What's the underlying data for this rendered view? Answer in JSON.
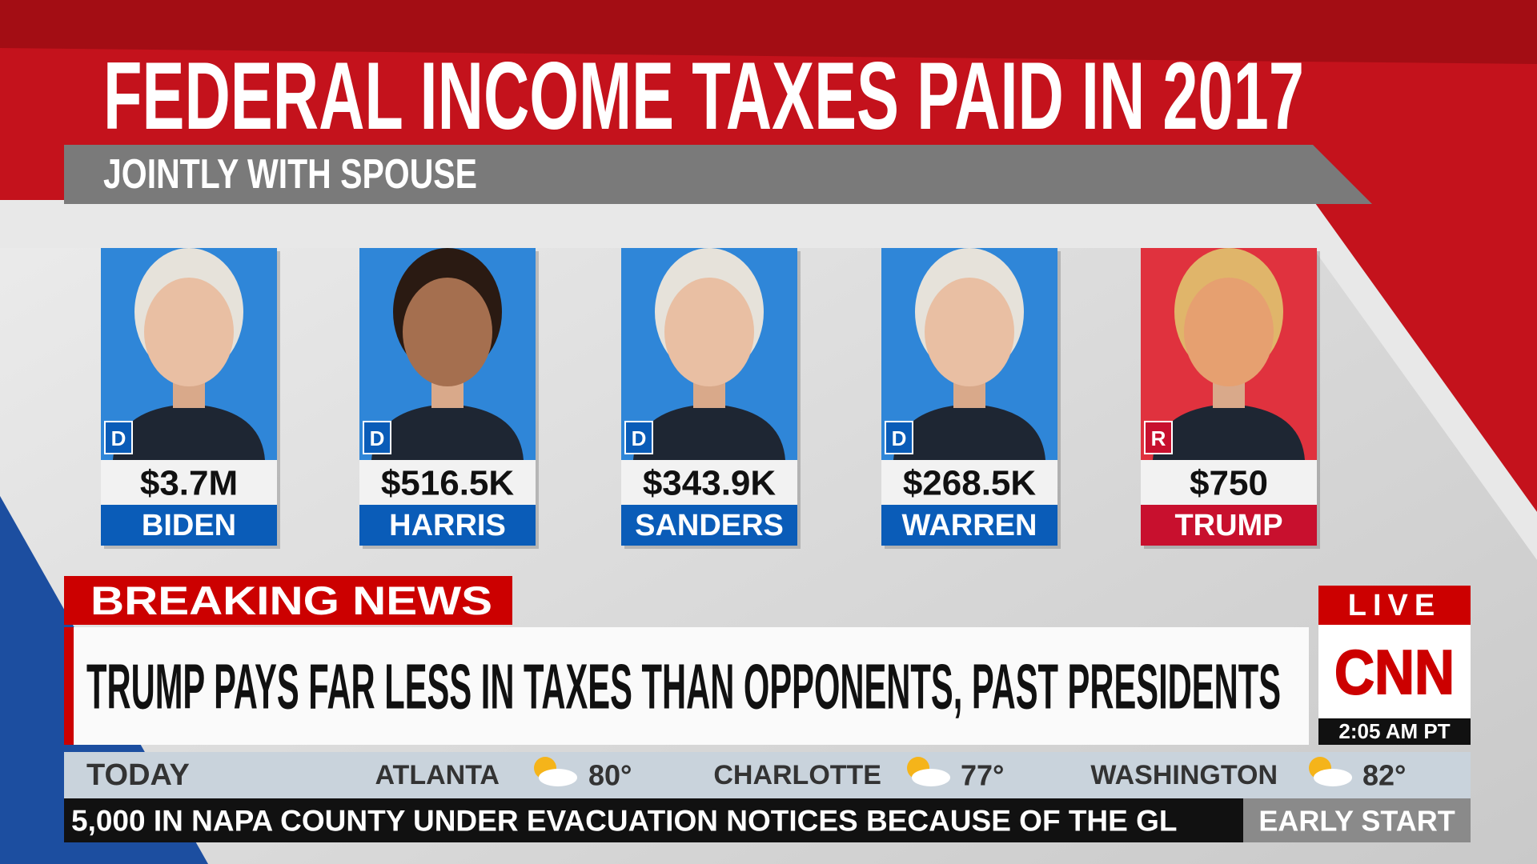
{
  "header": {
    "title": "FEDERAL INCOME TAXES PAID IN 2017",
    "subtitle": "JOINTLY WITH SPOUSE"
  },
  "cards": [
    {
      "party": "D",
      "amount": "$3.7M",
      "name": "BIDEN"
    },
    {
      "party": "D",
      "amount": "$516.5K",
      "name": "HARRIS"
    },
    {
      "party": "D",
      "amount": "$343.9K",
      "name": "SANDERS"
    },
    {
      "party": "D",
      "amount": "$268.5K",
      "name": "WARREN"
    },
    {
      "party": "R",
      "amount": "$750",
      "name": "TRUMP"
    }
  ],
  "lower_third": {
    "label": "BREAKING NEWS",
    "headline": "TRUMP PAYS FAR LESS IN TAXES THAN OPPONENTS, PAST PRESIDENTS",
    "live": "LIVE",
    "network": "CNN",
    "time": "2:05 AM PT"
  },
  "weather": {
    "label": "TODAY",
    "cities": [
      {
        "name": "ATLANTA",
        "temp": "80°"
      },
      {
        "name": "CHARLOTTE",
        "temp": "77°"
      },
      {
        "name": "WASHINGTON",
        "temp": "82°"
      }
    ]
  },
  "ticker": {
    "text": "5,000 IN NAPA COUNTY UNDER EVACUATION NOTICES BECAUSE OF THE GL",
    "show": "EARLY START"
  }
}
